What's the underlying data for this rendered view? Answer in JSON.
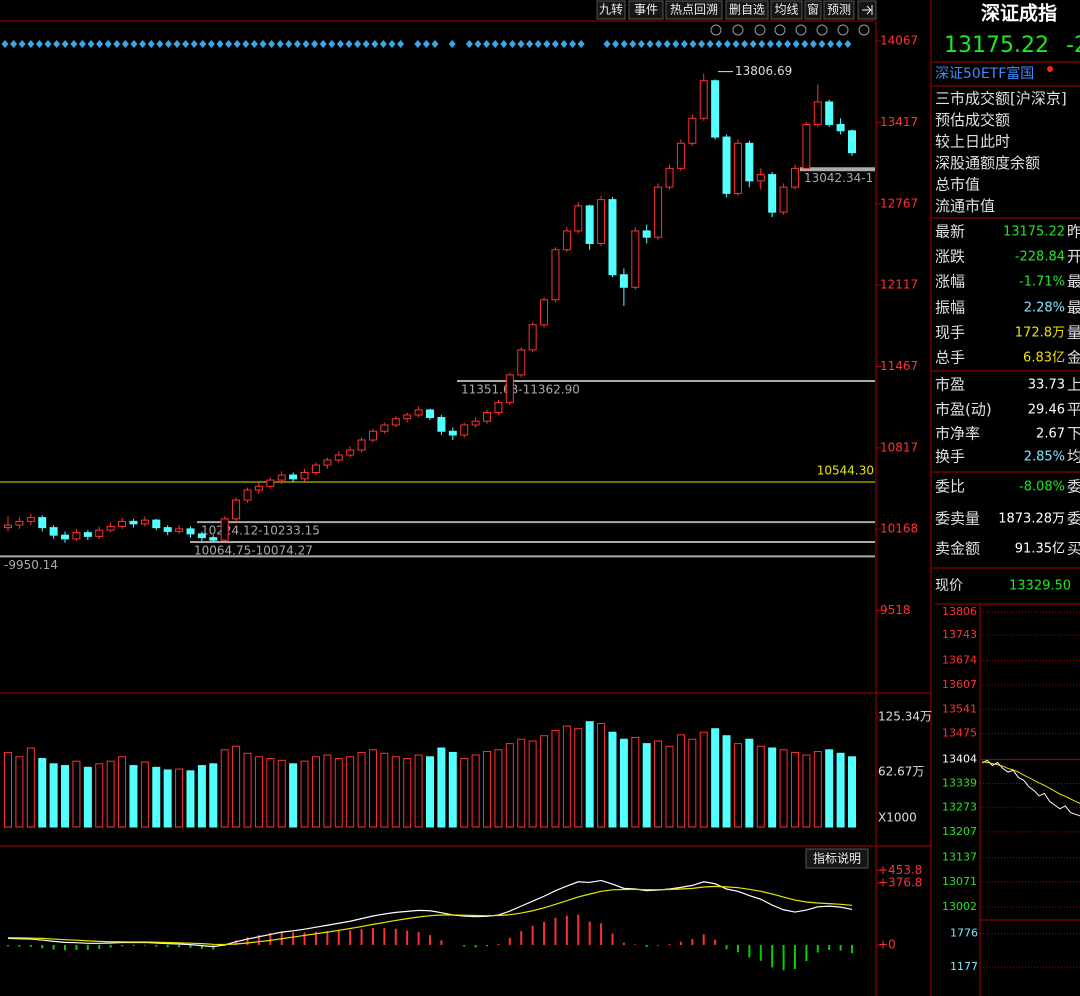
{
  "toolbar": [
    "九转",
    "事件",
    "热点回溯",
    "删自选",
    "均线",
    "窗",
    "预测"
  ],
  "chart_data": [
    {
      "type": "candlestick",
      "up_color": "#ff3232",
      "down_color": "#54ffff",
      "ylim": [
        8883,
        14219
      ],
      "yticks": [
        14067,
        13417,
        12767,
        12117,
        11467,
        10817,
        10168,
        9518
      ],
      "annotations": [
        {
          "label": "13806.69",
          "value": 13806.69,
          "color": "#dddddd"
        },
        {
          "label": "13042.34-1",
          "value": 13042.34,
          "color": "#aaaaaa"
        },
        {
          "label": "11351.63-11362.90",
          "value": 11351.63,
          "color": "#aaaaaa"
        },
        {
          "label": "10544.30",
          "value": 10544.3,
          "color": "#e6e600"
        },
        {
          "label": "10224.12-10233.15",
          "value": 10224.12,
          "color": "#aaaaaa"
        },
        {
          "label": "10064.75-10074.27",
          "value": 10064.75,
          "color": "#aaaaaa"
        },
        {
          "label": "-9950.14",
          "value": 9950.14,
          "color": "#aaaaaa"
        }
      ],
      "candles": [
        [
          10180,
          10270,
          10150,
          10200
        ],
        [
          10200,
          10260,
          10170,
          10230
        ],
        [
          10230,
          10290,
          10200,
          10260
        ],
        [
          10260,
          10280,
          10150,
          10180
        ],
        [
          10180,
          10200,
          10090,
          10120
        ],
        [
          10120,
          10150,
          10060,
          10090
        ],
        [
          10090,
          10170,
          10070,
          10140
        ],
        [
          10140,
          10160,
          10080,
          10110
        ],
        [
          10110,
          10190,
          10090,
          10160
        ],
        [
          10160,
          10220,
          10140,
          10190
        ],
        [
          10190,
          10260,
          10170,
          10230
        ],
        [
          10230,
          10250,
          10180,
          10210
        ],
        [
          10210,
          10270,
          10190,
          10240
        ],
        [
          10240,
          10250,
          10160,
          10180
        ],
        [
          10180,
          10200,
          10120,
          10150
        ],
        [
          10150,
          10200,
          10130,
          10170
        ],
        [
          10170,
          10190,
          10100,
          10130
        ],
        [
          10130,
          10150,
          10070,
          10100
        ],
        [
          10100,
          10120,
          10064.75,
          10080
        ],
        [
          10080,
          10270,
          10070,
          10250
        ],
        [
          10250,
          10420,
          10230,
          10400
        ],
        [
          10400,
          10500,
          10380,
          10480
        ],
        [
          10480,
          10540,
          10450,
          10510
        ],
        [
          10510,
          10580,
          10490,
          10560
        ],
        [
          10560,
          10630,
          10530,
          10600
        ],
        [
          10600,
          10620,
          10540,
          10570
        ],
        [
          10570,
          10650,
          10550,
          10620
        ],
        [
          10620,
          10700,
          10600,
          10680
        ],
        [
          10680,
          10740,
          10650,
          10720
        ],
        [
          10720,
          10790,
          10700,
          10760
        ],
        [
          10760,
          10830,
          10740,
          10800
        ],
        [
          10800,
          10900,
          10780,
          10880
        ],
        [
          10880,
          10970,
          10860,
          10950
        ],
        [
          10950,
          11020,
          10930,
          11000
        ],
        [
          11000,
          11070,
          10980,
          11050
        ],
        [
          11050,
          11100,
          11020,
          11080
        ],
        [
          11080,
          11150,
          11060,
          11120
        ],
        [
          11120,
          11130,
          11040,
          11060
        ],
        [
          11060,
          11080,
          10920,
          10950
        ],
        [
          10950,
          10980,
          10880,
          10920
        ],
        [
          10920,
          11020,
          10900,
          11000
        ],
        [
          11000,
          11060,
          10980,
          11030
        ],
        [
          11030,
          11120,
          11010,
          11100
        ],
        [
          11100,
          11200,
          11080,
          11180
        ],
        [
          11180,
          11420,
          11160,
          11400
        ],
        [
          11400,
          11620,
          11380,
          11600
        ],
        [
          11600,
          11820,
          11580,
          11800
        ],
        [
          11800,
          12020,
          11780,
          12000
        ],
        [
          12000,
          12420,
          11980,
          12400
        ],
        [
          12400,
          12580,
          12380,
          12550
        ],
        [
          12550,
          12780,
          12530,
          12750
        ],
        [
          12750,
          12760,
          12400,
          12450
        ],
        [
          12450,
          12830,
          12430,
          12800
        ],
        [
          12800,
          12820,
          12180,
          12200
        ],
        [
          12200,
          12250,
          11950,
          12100
        ],
        [
          12100,
          12580,
          12080,
          12550
        ],
        [
          12550,
          12600,
          12450,
          12500
        ],
        [
          12500,
          12930,
          12480,
          12900
        ],
        [
          12900,
          13080,
          12880,
          13050
        ],
        [
          13050,
          13280,
          13030,
          13250
        ],
        [
          13250,
          13480,
          13230,
          13450
        ],
        [
          13450,
          13806.69,
          13430,
          13750
        ],
        [
          13750,
          13760,
          13280,
          13300
        ],
        [
          13300,
          13320,
          12820,
          12850
        ],
        [
          12850,
          13280,
          12830,
          13250
        ],
        [
          13250,
          13270,
          12900,
          12950
        ],
        [
          12950,
          13050,
          12880,
          13000
        ],
        [
          13000,
          13020,
          12660,
          12700
        ],
        [
          12700,
          12930,
          12680,
          12900
        ],
        [
          12900,
          13080,
          12880,
          13050
        ],
        [
          13050,
          13420,
          13042.34,
          13400
        ],
        [
          13400,
          13720,
          13380,
          13580
        ],
        [
          13580,
          13600,
          13380,
          13400
        ],
        [
          13400,
          13450,
          13320,
          13350
        ],
        [
          13350,
          13360,
          13150,
          13175.22
        ]
      ]
    },
    {
      "type": "bar",
      "unit_label": "X1000",
      "ylim": [
        0,
        125.34
      ],
      "yticks": [
        {
          "value": 125.34,
          "label": "125.34万"
        },
        {
          "value": 62.67,
          "label": "62.67万"
        }
      ],
      "values": [
        85,
        80,
        90,
        78,
        72,
        70,
        75,
        68,
        72,
        75,
        80,
        70,
        74,
        68,
        65,
        66,
        64,
        70,
        72,
        88,
        92,
        84,
        80,
        78,
        76,
        72,
        75,
        80,
        82,
        78,
        80,
        85,
        88,
        84,
        80,
        78,
        82,
        80,
        90,
        85,
        78,
        82,
        86,
        88,
        95,
        100,
        98,
        104,
        110,
        115,
        112,
        120,
        118,
        108,
        100,
        102,
        95,
        98,
        92,
        105,
        100,
        108,
        112,
        104,
        95,
        100,
        92,
        90,
        88,
        85,
        82,
        86,
        88,
        84,
        80
      ]
    },
    {
      "type": "macd",
      "button": "指标说明",
      "ylim": [
        -310,
        577
      ],
      "yticks": [
        {
          "value": 453.8,
          "label": "+453.8"
        },
        {
          "value": 376.8,
          "label": "+376.8"
        },
        {
          "value": 0,
          "label": "+0"
        }
      ],
      "dif_color": "#ffffff",
      "dea_color": "#e6e600",
      "dif": [
        40,
        38,
        36,
        30,
        22,
        16,
        14,
        10,
        10,
        12,
        15,
        15,
        16,
        12,
        8,
        6,
        2,
        -4,
        -10,
        0,
        20,
        36,
        50,
        64,
        78,
        86,
        96,
        108,
        120,
        132,
        144,
        160,
        176,
        188,
        198,
        204,
        210,
        208,
        196,
        182,
        176,
        172,
        174,
        182,
        206,
        236,
        266,
        296,
        330,
        358,
        384,
        380,
        392,
        370,
        344,
        340,
        330,
        334,
        340,
        350,
        362,
        384,
        372,
        340,
        326,
        300,
        278,
        242,
        214,
        200,
        212,
        232,
        236,
        230,
        216
      ],
      "dea": [
        44,
        43,
        42,
        40,
        36,
        32,
        29,
        25,
        22,
        20,
        19,
        18,
        18,
        17,
        15,
        13,
        11,
        8,
        4,
        3,
        6,
        12,
        20,
        28,
        38,
        48,
        58,
        68,
        78,
        89,
        100,
        112,
        125,
        137,
        149,
        160,
        170,
        178,
        182,
        182,
        181,
        179,
        178,
        179,
        184,
        194,
        208,
        226,
        247,
        269,
        292,
        309,
        326,
        335,
        337,
        338,
        336,
        336,
        337,
        340,
        344,
        352,
        356,
        353,
        348,
        338,
        326,
        310,
        291,
        273,
        261,
        255,
        251,
        247,
        241
      ],
      "hist": [
        -8,
        -10,
        -12,
        -20,
        -28,
        -32,
        -30,
        -30,
        -24,
        -16,
        -8,
        -6,
        -4,
        -10,
        -14,
        -14,
        -18,
        -24,
        -28,
        -6,
        28,
        48,
        60,
        72,
        80,
        76,
        76,
        80,
        84,
        86,
        88,
        96,
        102,
        102,
        98,
        88,
        80,
        60,
        28,
        0,
        -10,
        -14,
        -8,
        6,
        44,
        84,
        116,
        140,
        166,
        178,
        184,
        142,
        132,
        70,
        14,
        4,
        -12,
        -4,
        6,
        20,
        36,
        64,
        32,
        -26,
        -44,
        -76,
        -96,
        -136,
        -154,
        -146,
        -98,
        -46,
        -30,
        -34,
        -50
      ]
    },
    {
      "type": "line",
      "ylim": [
        12967,
        13828
      ],
      "yticks": [
        13806,
        13743,
        13674,
        13607,
        13541,
        13475,
        13404,
        13339,
        13273,
        13207,
        13137,
        13071,
        13002
      ],
      "y2lim": [
        660,
        1840
      ],
      "y2ticks": [
        1776,
        1177
      ],
      "series": [
        {
          "color": "#ffffff",
          "values": [
            13395,
            13402,
            13388,
            13396,
            13380,
            13370,
            13375,
            13355,
            13348,
            13330,
            13320,
            13305,
            13312,
            13290,
            13280,
            13270,
            13278,
            13260,
            13255,
            13250
          ]
        },
        {
          "color": "#e6e600",
          "values": [
            13398,
            13396,
            13393,
            13390,
            13386,
            13380,
            13376,
            13370,
            13362,
            13355,
            13348,
            13340,
            13334,
            13326,
            13318,
            13310,
            13304,
            13297,
            13290,
            13284
          ]
        }
      ]
    }
  ],
  "quote": {
    "title": "深证成指",
    "price": "13175.22",
    "price_tail": "-2",
    "fund": "深证50ETF富国",
    "items": [
      "三市成交额[沪深京]",
      "预估成交额",
      "较上日此时",
      "深股通额度余额",
      "总市值",
      "流通市值"
    ],
    "rows": [
      {
        "label": "最新",
        "value": "13175.22",
        "tail": "昨",
        "color": "#22e622"
      },
      {
        "label": "涨跌",
        "value": "-228.84",
        "tail": "开",
        "color": "#22e622"
      },
      {
        "label": "涨幅",
        "value": "-1.71%",
        "tail": "最",
        "color": "#22e622"
      },
      {
        "label": "振幅",
        "value": "2.28%",
        "tail": "最",
        "color": "#7fe7ff"
      },
      {
        "label": "现手",
        "value": "172.8万",
        "tail": "量",
        "color": "#f0e000"
      },
      {
        "label": "总手",
        "value": "6.83亿",
        "tail": "金",
        "color": "#f0e000"
      },
      {
        "label": "市盈",
        "value": "33.73",
        "tail": "上",
        "color": "#ffffff"
      },
      {
        "label": "市盈(动)",
        "value": "29.46",
        "tail": "平",
        "color": "#ffffff"
      },
      {
        "label": "市净率",
        "value": "2.67",
        "tail": "下",
        "color": "#ffffff"
      },
      {
        "label": "换手",
        "value": "2.85%",
        "tail": "均",
        "color": "#7fe7ff"
      },
      {
        "label": "委比",
        "value": "-8.08%",
        "tail": "委",
        "color": "#22e622"
      },
      {
        "label": "委卖量",
        "value": "1873.28万",
        "tail": "委",
        "color": "#ffffff"
      },
      {
        "label": "卖金额",
        "value": "91.35亿",
        "tail": "买",
        "color": "#ffffff"
      }
    ],
    "current": {
      "label": "现价",
      "value": "13329.50"
    }
  }
}
